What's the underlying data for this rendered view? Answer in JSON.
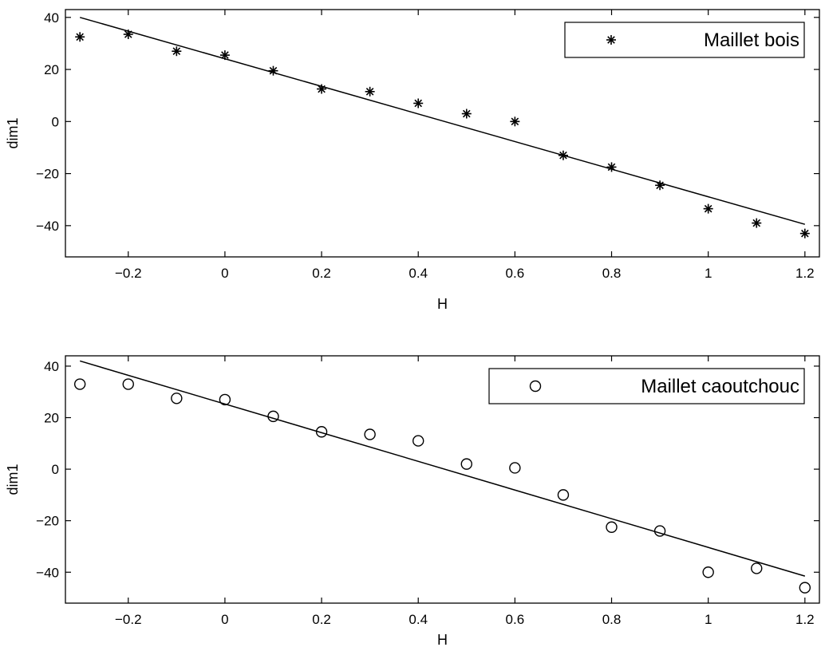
{
  "chart_data": [
    {
      "type": "scatter",
      "xlabel": "H",
      "ylabel": "dim1",
      "xlim": [
        -0.33,
        1.23
      ],
      "ylim": [
        -52,
        43
      ],
      "xticks": [
        -0.2,
        0,
        0.2,
        0.4,
        0.6,
        0.8,
        1,
        1.2
      ],
      "xtick_labels": [
        "−0.2",
        "0",
        "0.2",
        "0.4",
        "0.6",
        "0.8",
        "1",
        "1.2"
      ],
      "yticks": [
        -40,
        -20,
        0,
        20,
        40
      ],
      "ytick_labels": [
        "−40",
        "−20",
        "0",
        "20",
        "40"
      ],
      "grid": false,
      "legend_position": "top-right",
      "series": [
        {
          "name": "Maillet bois",
          "marker": "star",
          "x": [
            -0.3,
            -0.2,
            -0.1,
            0,
            0.1,
            0.2,
            0.3,
            0.4,
            0.5,
            0.6,
            0.7,
            0.8,
            0.9,
            1.0,
            1.1,
            1.2
          ],
          "y": [
            32.5,
            33.5,
            27,
            25.5,
            19.5,
            12.5,
            11.5,
            7,
            3,
            0,
            -13,
            -17.5,
            -24.5,
            -33.5,
            -39,
            -43
          ]
        }
      ],
      "fit_line": {
        "x": [
          -0.3,
          1.2
        ],
        "y": [
          40,
          -39.5
        ]
      }
    },
    {
      "type": "scatter",
      "xlabel": "H",
      "ylabel": "dim1",
      "xlim": [
        -0.33,
        1.23
      ],
      "ylim": [
        -52,
        44
      ],
      "xticks": [
        -0.2,
        0,
        0.2,
        0.4,
        0.6,
        0.8,
        1,
        1.2
      ],
      "xtick_labels": [
        "−0.2",
        "0",
        "0.2",
        "0.4",
        "0.6",
        "0.8",
        "1",
        "1.2"
      ],
      "yticks": [
        -40,
        -20,
        0,
        20,
        40
      ],
      "ytick_labels": [
        "−40",
        "−20",
        "0",
        "20",
        "40"
      ],
      "grid": false,
      "legend_position": "top-right",
      "series": [
        {
          "name": "Maillet caoutchouc",
          "marker": "circle",
          "x": [
            -0.3,
            -0.2,
            -0.1,
            0,
            0.1,
            0.2,
            0.3,
            0.4,
            0.5,
            0.6,
            0.7,
            0.8,
            0.9,
            1.0,
            1.1,
            1.2
          ],
          "y": [
            33,
            33,
            27.5,
            27,
            20.5,
            14.5,
            13.5,
            11,
            2,
            0.5,
            -10,
            -22.5,
            -24,
            -40,
            -38.5,
            -46
          ]
        }
      ],
      "fit_line": {
        "x": [
          -0.3,
          1.2
        ],
        "y": [
          42,
          -41.5
        ]
      }
    }
  ]
}
